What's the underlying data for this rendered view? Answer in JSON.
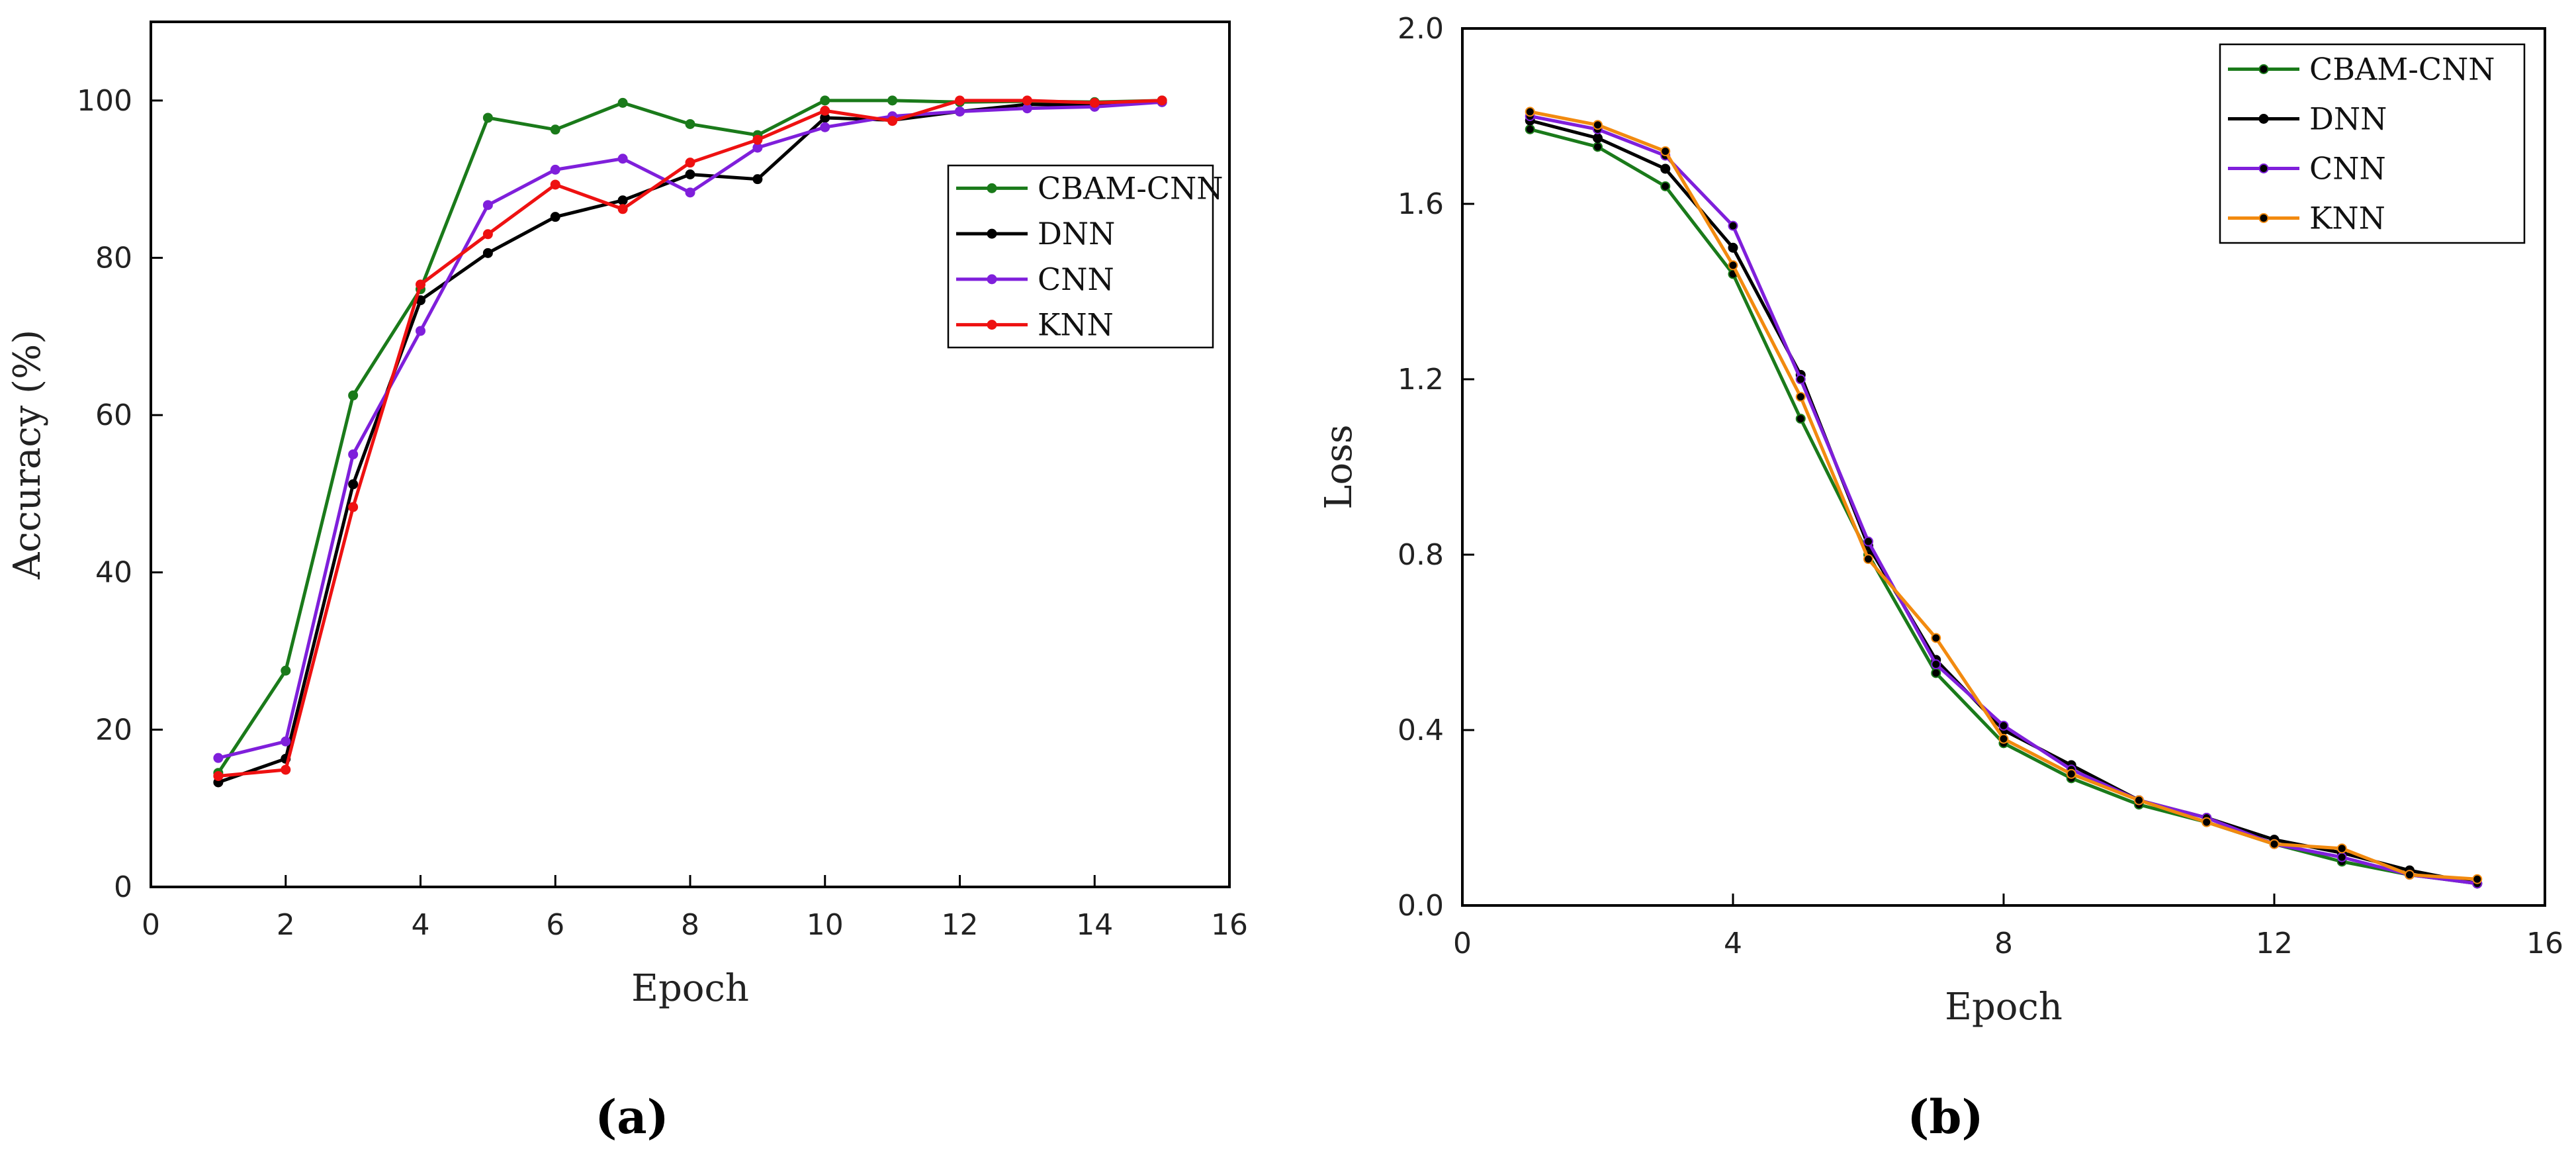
{
  "chart_data": [
    {
      "id": "a",
      "type": "line",
      "caption": "(a)",
      "xlabel": "Epoch",
      "ylabel": "Accuracy (%)",
      "xlim": [
        0,
        16
      ],
      "ylim": [
        0,
        110
      ],
      "xticks": [
        0,
        2,
        4,
        6,
        8,
        10,
        12,
        14,
        16
      ],
      "yticks": [
        0,
        20,
        40,
        60,
        80,
        100
      ],
      "x": [
        1,
        2,
        3,
        4,
        5,
        6,
        7,
        8,
        9,
        10,
        11,
        12,
        13,
        14,
        15
      ],
      "legend_position": "right-upper",
      "series": [
        {
          "name": "CBAM-CNN",
          "color": "#1a7a1a",
          "values": [
            14.5,
            27.5,
            62.5,
            76,
            97.8,
            96.3,
            99.7,
            97,
            95.6,
            100,
            100,
            99.8,
            99.9,
            99.8,
            100
          ]
        },
        {
          "name": "DNN",
          "color": "#000000",
          "values": [
            13.3,
            16.3,
            51.2,
            74.6,
            80.6,
            85.2,
            87.3,
            90.6,
            90,
            97.8,
            97.5,
            98.6,
            99.5,
            99.4,
            99.8
          ]
        },
        {
          "name": "CNN",
          "color": "#7f1fdb",
          "values": [
            16.4,
            18.5,
            55,
            70.7,
            86.7,
            91.2,
            92.6,
            88.3,
            94,
            96.6,
            98,
            98.6,
            99,
            99.2,
            99.8
          ]
        },
        {
          "name": "KNN",
          "color": "#ee1111",
          "values": [
            14.1,
            14.9,
            48.3,
            76.6,
            83,
            89.3,
            86.2,
            92.1,
            95,
            98.7,
            97.4,
            100,
            100,
            99.7,
            100
          ]
        }
      ]
    },
    {
      "id": "b",
      "type": "line",
      "caption": "(b)",
      "xlabel": "Epoch",
      "ylabel": "Loss",
      "xlim": [
        0,
        16
      ],
      "ylim": [
        0,
        2.0
      ],
      "xticks": [
        0,
        4,
        8,
        12,
        16
      ],
      "yticks": [
        0.0,
        0.4,
        0.8,
        1.2,
        1.6,
        2.0
      ],
      "ytick_labels": [
        "0.0",
        "0.4",
        "0.8",
        "1.2",
        "1.6",
        "2.0"
      ],
      "x": [
        1,
        2,
        3,
        4,
        5,
        6,
        7,
        8,
        9,
        10,
        11,
        12,
        13,
        14,
        15
      ],
      "legend_position": "top-right",
      "series": [
        {
          "name": "CBAM-CNN",
          "color": "#1a7a1a",
          "values": [
            1.77,
            1.73,
            1.64,
            1.44,
            1.11,
            0.8,
            0.53,
            0.37,
            0.29,
            0.23,
            0.19,
            0.14,
            0.1,
            0.07,
            0.05
          ]
        },
        {
          "name": "DNN",
          "color": "#000000",
          "values": [
            1.79,
            1.75,
            1.68,
            1.5,
            1.21,
            0.82,
            0.56,
            0.4,
            0.32,
            0.24,
            0.2,
            0.15,
            0.12,
            0.08,
            0.05
          ]
        },
        {
          "name": "CNN",
          "color": "#7f1fdb",
          "values": [
            1.8,
            1.77,
            1.71,
            1.55,
            1.2,
            0.83,
            0.55,
            0.41,
            0.31,
            0.24,
            0.2,
            0.14,
            0.11,
            0.07,
            0.05
          ]
        },
        {
          "name": "KNN",
          "color": "#f28a0f",
          "values": [
            1.81,
            1.78,
            1.72,
            1.46,
            1.16,
            0.79,
            0.61,
            0.38,
            0.3,
            0.24,
            0.19,
            0.14,
            0.13,
            0.07,
            0.06
          ]
        }
      ]
    }
  ]
}
